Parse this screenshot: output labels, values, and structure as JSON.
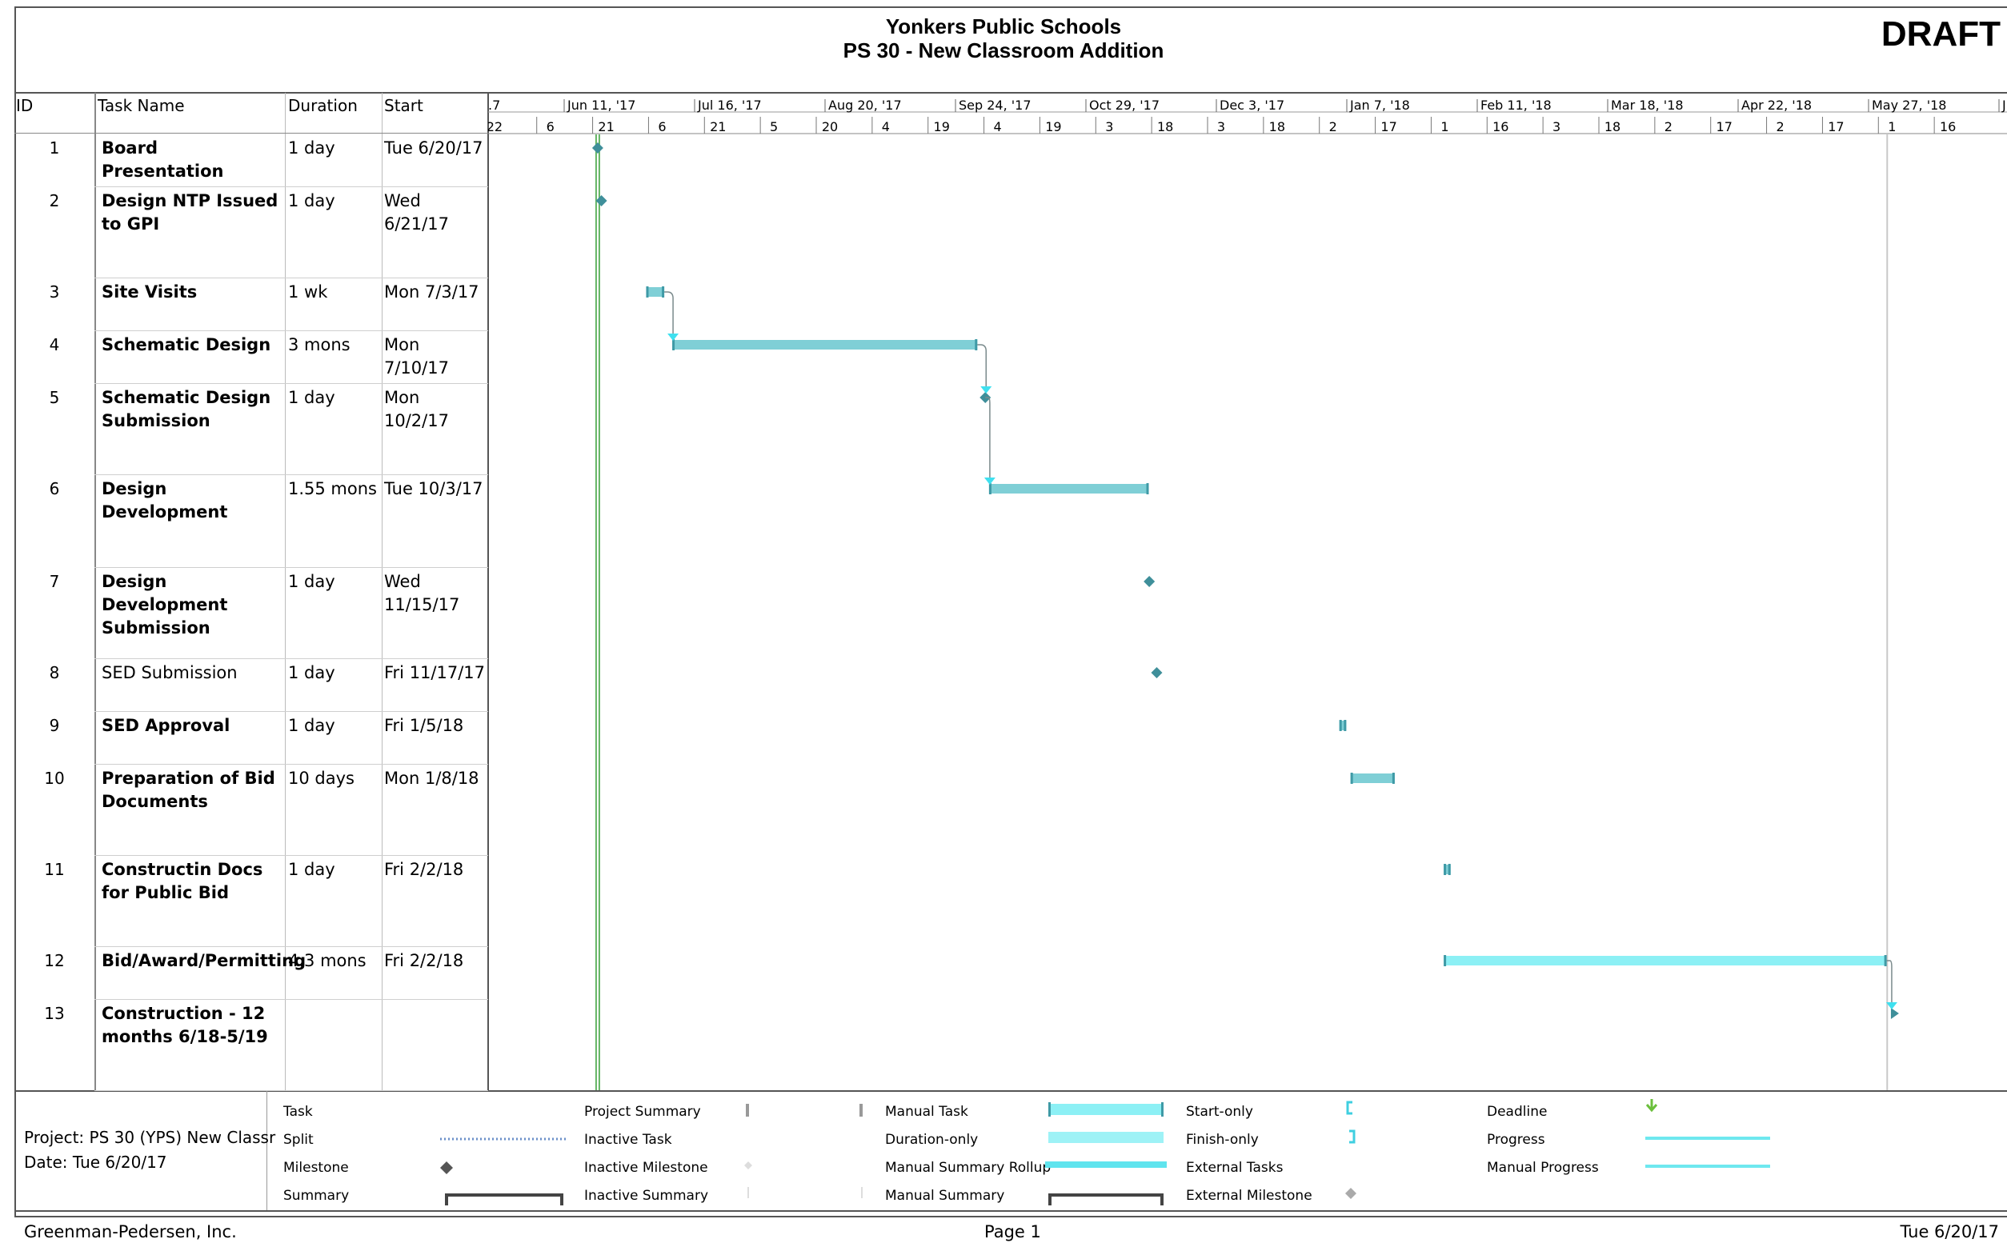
{
  "header": {
    "title_line1": "Yonkers Public Schools",
    "title_line2": "PS 30 - New Classroom Addition",
    "stamp": "DRAFT"
  },
  "columns": {
    "id": "ID",
    "task_name": "Task Name",
    "duration": "Duration",
    "start": "Start"
  },
  "timescale": {
    "months": [
      {
        "label": ".7",
        "date": "2017-05-07"
      },
      {
        "label": "Jun 11, '17",
        "date": "2017-06-11"
      },
      {
        "label": "Jul 16, '17",
        "date": "2017-07-16"
      },
      {
        "label": "Aug 20, '17",
        "date": "2017-08-20"
      },
      {
        "label": "Sep 24, '17",
        "date": "2017-09-24"
      },
      {
        "label": "Oct 29, '17",
        "date": "2017-10-29"
      },
      {
        "label": "Dec 3, '17",
        "date": "2017-12-03"
      },
      {
        "label": "Jan 7, '18",
        "date": "2018-01-07"
      },
      {
        "label": "Feb 11, '18",
        "date": "2018-02-11"
      },
      {
        "label": "Mar 18, '18",
        "date": "2018-03-18"
      },
      {
        "label": "Apr 22, '18",
        "date": "2018-04-22"
      },
      {
        "label": "May 27, '18",
        "date": "2018-05-27"
      },
      {
        "label": "J",
        "date": "2018-07-01"
      }
    ],
    "days": [
      {
        "label": "22",
        "date": "2017-05-22"
      },
      {
        "label": "6",
        "date": "2017-06-06"
      },
      {
        "label": "21",
        "date": "2017-06-21"
      },
      {
        "label": "6",
        "date": "2017-07-06"
      },
      {
        "label": "21",
        "date": "2017-07-21"
      },
      {
        "label": "5",
        "date": "2017-08-05"
      },
      {
        "label": "20",
        "date": "2017-08-20"
      },
      {
        "label": "4",
        "date": "2017-09-04"
      },
      {
        "label": "19",
        "date": "2017-09-19"
      },
      {
        "label": "4",
        "date": "2017-10-04"
      },
      {
        "label": "19",
        "date": "2017-10-19"
      },
      {
        "label": "3",
        "date": "2017-11-03"
      },
      {
        "label": "18",
        "date": "2017-11-18"
      },
      {
        "label": "3",
        "date": "2017-12-03"
      },
      {
        "label": "18",
        "date": "2017-12-18"
      },
      {
        "label": "2",
        "date": "2018-01-02"
      },
      {
        "label": "17",
        "date": "2018-01-17"
      },
      {
        "label": "1",
        "date": "2018-02-01"
      },
      {
        "label": "16",
        "date": "2018-02-16"
      },
      {
        "label": "3",
        "date": "2018-03-03"
      },
      {
        "label": "18",
        "date": "2018-03-18"
      },
      {
        "label": "2",
        "date": "2018-04-02"
      },
      {
        "label": "17",
        "date": "2018-04-17"
      },
      {
        "label": "2",
        "date": "2018-05-02"
      },
      {
        "label": "17",
        "date": "2018-05-17"
      },
      {
        "label": "1",
        "date": "2018-06-01"
      },
      {
        "label": "16",
        "date": "2018-06-16"
      }
    ]
  },
  "chart_data": {
    "type": "gantt",
    "status_date": "2017-06-20",
    "tasks": [
      {
        "id": "1",
        "name": "Board Presentation",
        "duration": "1 day",
        "start": "Tue 6/20/17",
        "bold": true,
        "kind": "milestone",
        "start_date": "2017-06-20",
        "end_date": "2017-06-20"
      },
      {
        "id": "2",
        "name": "Design NTP Issued to GPI",
        "duration": "1 day",
        "start": "Wed 6/21/17",
        "bold": true,
        "kind": "milestone",
        "start_date": "2017-06-21",
        "end_date": "2017-06-21"
      },
      {
        "id": "3",
        "name": "Site Visits",
        "duration": "1 wk",
        "start": "Mon 7/3/17",
        "bold": true,
        "kind": "bar",
        "start_date": "2017-07-03",
        "end_date": "2017-07-07"
      },
      {
        "id": "4",
        "name": "Schematic Design",
        "duration": "3 mons",
        "start": "Mon 7/10/17",
        "bold": true,
        "kind": "bar",
        "start_date": "2017-07-10",
        "end_date": "2017-09-29"
      },
      {
        "id": "5",
        "name": "Schematic Design Submission",
        "duration": "1 day",
        "start": "Mon 10/2/17",
        "bold": true,
        "kind": "milestone",
        "start_date": "2017-10-02",
        "end_date": "2017-10-02"
      },
      {
        "id": "6",
        "name": "Design Development",
        "duration": "1.55 mons",
        "start": "Tue 10/3/17",
        "bold": true,
        "kind": "bar",
        "start_date": "2017-10-03",
        "end_date": "2017-11-14"
      },
      {
        "id": "7",
        "name": "Design Development Submission",
        "duration": "1 day",
        "start": "Wed 11/15/17",
        "bold": true,
        "kind": "milestone",
        "start_date": "2017-11-15",
        "end_date": "2017-11-15"
      },
      {
        "id": "8",
        "name": "SED Submission",
        "duration": "1 day",
        "start": "Fri 11/17/17",
        "bold": false,
        "kind": "milestone",
        "start_date": "2017-11-17",
        "end_date": "2017-11-17"
      },
      {
        "id": "9",
        "name": "SED  Approval",
        "duration": "1 day",
        "start": "Fri 1/5/18",
        "bold": true,
        "kind": "bar",
        "start_date": "2018-01-05",
        "end_date": "2018-01-06"
      },
      {
        "id": "10",
        "name": "Preparation of Bid Documents",
        "duration": "10 days",
        "start": "Mon 1/8/18",
        "bold": true,
        "kind": "bar",
        "start_date": "2018-01-08",
        "end_date": "2018-01-19"
      },
      {
        "id": "11",
        "name": "Constructin Docs for Public Bid",
        "duration": "1 day",
        "start": "Fri 2/2/18",
        "bold": true,
        "kind": "bar",
        "start_date": "2018-02-02",
        "end_date": "2018-02-03"
      },
      {
        "id": "12",
        "name": "Bid/Award/Permitting",
        "duration": "4.3 mons",
        "start": "Fri 2/2/18",
        "bold": true,
        "kind": "manual",
        "start_date": "2018-02-02",
        "end_date": "2018-05-31"
      },
      {
        "id": "13",
        "name": "Construction  - 12 months 6/18-5/19",
        "duration": "",
        "start": "",
        "bold": true,
        "kind": "manual-start",
        "start_date": "2018-06-02",
        "end_date": "2018-06-02"
      }
    ],
    "links": [
      [
        "3",
        "4"
      ],
      [
        "4",
        "5"
      ],
      [
        "5",
        "6"
      ],
      [
        "12",
        "13"
      ]
    ],
    "colors": {
      "bar": "#7fcfd6",
      "bar_end": "#3f9aa6",
      "milestone": "#3f8f9a",
      "manual": "#8cf0f5",
      "link": "#3fe0ef",
      "status_line": "#62b462"
    }
  },
  "legend": {
    "project_label": "Project: PS 30 (YPS) New Classr",
    "date_label": "Date: Tue 6/20/17",
    "col1": [
      "Task",
      "Split",
      "Milestone",
      "Summary"
    ],
    "col2": [
      "Project Summary",
      "Inactive Task",
      "Inactive Milestone",
      "Inactive Summary"
    ],
    "col3": [
      "Manual Task",
      "Duration-only",
      "Manual Summary Rollup",
      "Manual Summary"
    ],
    "col4": [
      "Start-only",
      "Finish-only",
      "External Tasks",
      "External Milestone"
    ],
    "col5": [
      "Deadline",
      "Progress",
      "Manual Progress"
    ]
  },
  "footer": {
    "company": "Greenman-Pedersen, Inc.",
    "page": "Page 1",
    "date": "Tue 6/20/17"
  }
}
